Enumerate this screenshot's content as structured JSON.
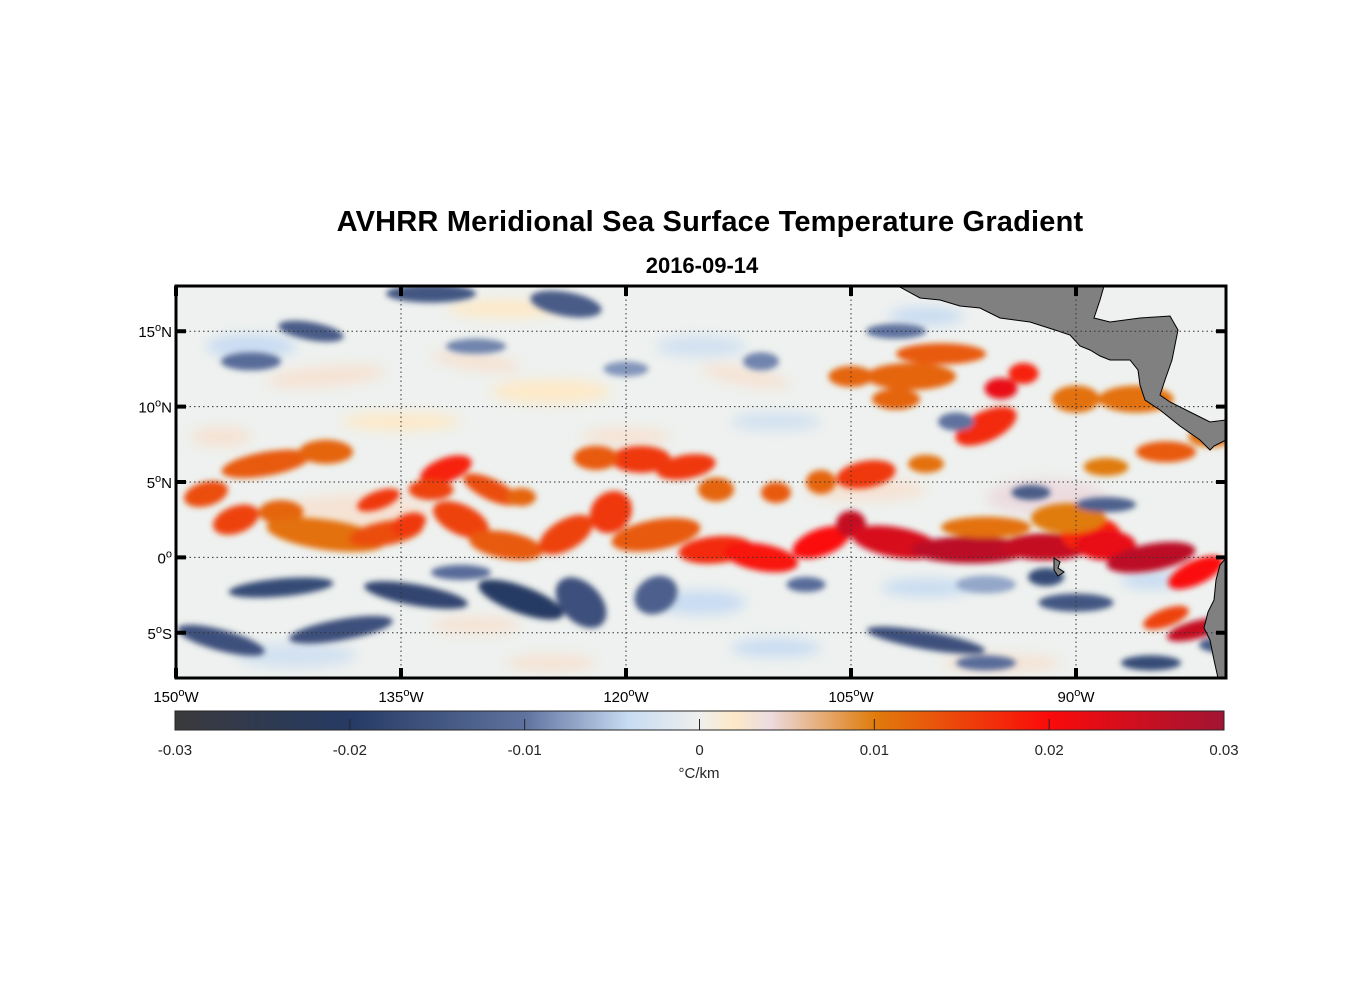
{
  "chart_data": {
    "type": "heatmap",
    "title": "AVHRR Meridional Sea Surface Temperature Gradient",
    "subtitle": "2016-09-14",
    "projection": "equirectangular",
    "lon_range": [
      -150,
      -80
    ],
    "lat_range": [
      -8,
      18
    ],
    "x_ticks": [
      {
        "value": -150,
        "label": "150",
        "sup": "o",
        "suffix": "W"
      },
      {
        "value": -135,
        "label": "135",
        "sup": "o",
        "suffix": "W"
      },
      {
        "value": -120,
        "label": "120",
        "sup": "o",
        "suffix": "W"
      },
      {
        "value": -105,
        "label": "105",
        "sup": "o",
        "suffix": "W"
      },
      {
        "value": -90,
        "label": "90",
        "sup": "o",
        "suffix": "W"
      }
    ],
    "y_ticks": [
      {
        "value": 15,
        "label": "15",
        "sup": "o",
        "suffix": "N"
      },
      {
        "value": 10,
        "label": "10",
        "sup": "o",
        "suffix": "N"
      },
      {
        "value": 5,
        "label": "5",
        "sup": "o",
        "suffix": "N"
      },
      {
        "value": 0,
        "label": "0",
        "sup": "o",
        "suffix": ""
      },
      {
        "value": -5,
        "label": "5",
        "sup": "o",
        "suffix": "S"
      }
    ],
    "grid": true,
    "colorbar": {
      "placement": "bottom",
      "range": [
        -0.03,
        0.03
      ],
      "ticks": [
        -0.03,
        -0.02,
        -0.01,
        0,
        0.01,
        0.02,
        0.03
      ],
      "tick_labels": [
        "-0.03",
        "-0.02",
        "-0.01",
        "0",
        "0.01",
        "0.02",
        "0.03"
      ],
      "label": "°C/km",
      "stops": [
        {
          "value": -0.03,
          "color": "#3a3a3c"
        },
        {
          "value": -0.02,
          "color": "#253a64"
        },
        {
          "value": -0.01,
          "color": "#5f729f"
        },
        {
          "value": -0.004,
          "color": "#c8dcf2"
        },
        {
          "value": 0,
          "color": "#eef0ee"
        },
        {
          "value": 0.002,
          "color": "#fde9c8"
        },
        {
          "value": 0.004,
          "color": "#ecdce0"
        },
        {
          "value": 0.01,
          "color": "#e07c0c"
        },
        {
          "value": 0.02,
          "color": "#fb0a0a"
        },
        {
          "value": 0.03,
          "color": "#a11434"
        }
      ]
    },
    "features": {
      "equatorial_front": {
        "value": 0.028,
        "description_lat": 1
      },
      "north_front": {
        "value": 0.015
      },
      "south_negative_band": {
        "value": -0.018
      }
    },
    "land_color": "#808080"
  }
}
